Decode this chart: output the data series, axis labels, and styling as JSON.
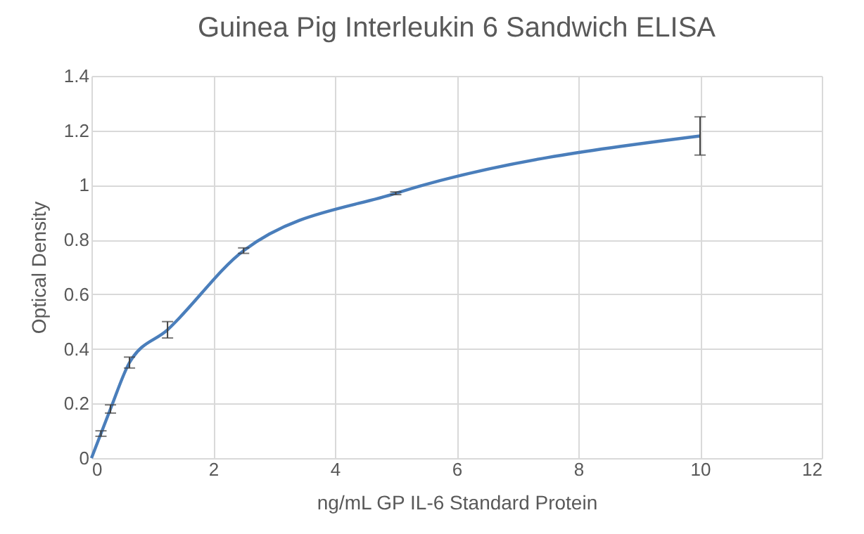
{
  "chart_data": {
    "type": "line",
    "title": "Guinea Pig Interleukin 6 Sandwich ELISA",
    "xlabel": "ng/mL GP IL-6 Standard Protein",
    "ylabel": "Optical Density",
    "x": [
      0,
      0.156,
      0.3125,
      0.625,
      1.25,
      2.5,
      5,
      10
    ],
    "series": [
      {
        "color": "#4a7ebb",
        "values": [
          0,
          0.09,
          0.18,
          0.35,
          0.47,
          0.76,
          0.97,
          1.18
        ],
        "errors": [
          null,
          0.01,
          0.015,
          0.02,
          0.03,
          0.01,
          0.005,
          0.07
        ]
      }
    ],
    "xlim": [
      0,
      12
    ],
    "xticks": [
      0,
      2,
      4,
      6,
      8,
      10,
      12
    ],
    "ylim": [
      0,
      1.4
    ],
    "yticks": [
      0,
      0.2,
      0.4,
      0.6,
      0.8,
      1,
      1.2,
      1.4
    ],
    "grid": true,
    "marker": "none",
    "line_style": "solid"
  }
}
